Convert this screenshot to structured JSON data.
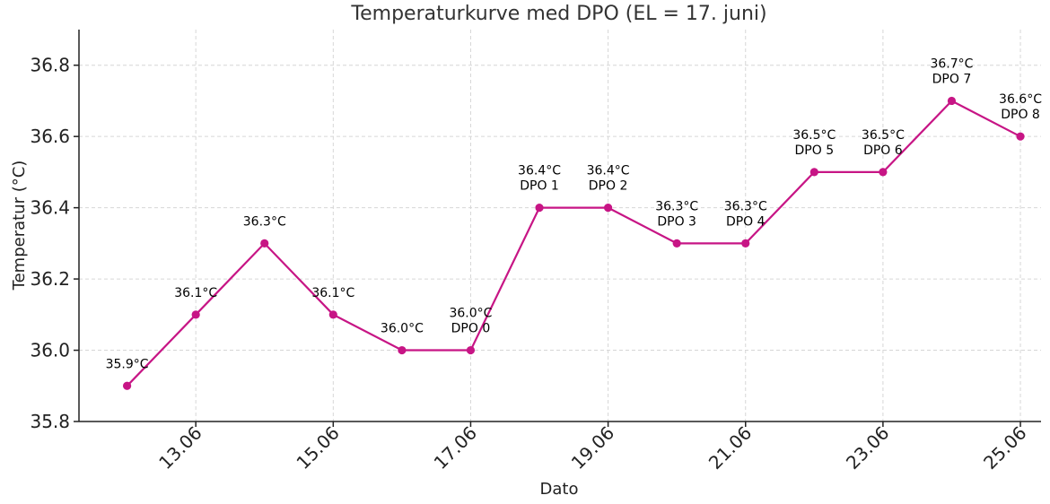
{
  "chart_data": {
    "type": "line",
    "title": "Temperaturkurve med DPO (EL = 17. juni)",
    "xlabel": "Dato",
    "ylabel": "Temperatur (°C)",
    "ylim": [
      35.8,
      36.9
    ],
    "yticks": [
      35.8,
      36.0,
      36.2,
      36.4,
      36.6,
      36.8
    ],
    "ytick_labels": [
      "35.8",
      "36.0",
      "36.2",
      "36.4",
      "36.6",
      "36.8"
    ],
    "xticks": [
      13,
      15,
      17,
      19,
      21,
      23,
      25
    ],
    "xtick_labels": [
      "13.06",
      "15.06",
      "17.06",
      "19.06",
      "21.06",
      "23.06",
      "25.06"
    ],
    "xlim": [
      11.3,
      25.3
    ],
    "grid": true,
    "color": "#c71585",
    "series": [
      {
        "name": "Temperatur",
        "points": [
          {
            "day": 12,
            "value": 35.9,
            "label": "35.9°C",
            "dpo": ""
          },
          {
            "day": 13,
            "value": 36.1,
            "label": "36.1°C",
            "dpo": ""
          },
          {
            "day": 14,
            "value": 36.3,
            "label": "36.3°C",
            "dpo": ""
          },
          {
            "day": 15,
            "value": 36.1,
            "label": "36.1°C",
            "dpo": ""
          },
          {
            "day": 16,
            "value": 36.0,
            "label": "36.0°C",
            "dpo": ""
          },
          {
            "day": 17,
            "value": 36.0,
            "label": "36.0°C",
            "dpo": "DPO 0"
          },
          {
            "day": 18,
            "value": 36.4,
            "label": "36.4°C",
            "dpo": "DPO 1"
          },
          {
            "day": 19,
            "value": 36.4,
            "label": "36.4°C",
            "dpo": "DPO 2"
          },
          {
            "day": 20,
            "value": 36.3,
            "label": "36.3°C",
            "dpo": "DPO 3"
          },
          {
            "day": 21,
            "value": 36.3,
            "label": "36.3°C",
            "dpo": "DPO 4"
          },
          {
            "day": 22,
            "value": 36.5,
            "label": "36.5°C",
            "dpo": "DPO 5"
          },
          {
            "day": 23,
            "value": 36.5,
            "label": "36.5°C",
            "dpo": "DPO 6"
          },
          {
            "day": 24,
            "value": 36.7,
            "label": "36.7°C",
            "dpo": "DPO 7"
          },
          {
            "day": 25,
            "value": 36.6,
            "label": "36.6°C",
            "dpo": "DPO 8"
          }
        ]
      }
    ]
  }
}
